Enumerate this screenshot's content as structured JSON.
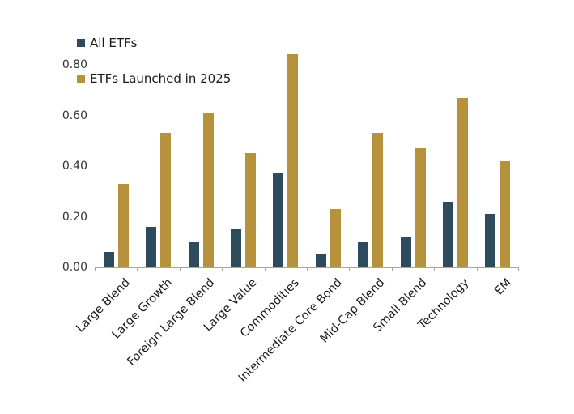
{
  "chart_data": {
    "type": "bar",
    "title": "",
    "xlabel": "",
    "ylabel": "",
    "categories": [
      "Large Blend",
      "Large Growth",
      "Foreign Large Blend",
      "Large Value",
      "Commodities",
      "Intermediate Core Bond",
      "Mid-Cap Blend",
      "Small Blend",
      "Technology",
      "EM"
    ],
    "series": [
      {
        "name": "All ETFs",
        "color": "#2d4b5c",
        "values": [
          0.06,
          0.16,
          0.1,
          0.15,
          0.37,
          0.05,
          0.1,
          0.12,
          0.26,
          0.21
        ]
      },
      {
        "name": "ETFs Launched in 2025",
        "color": "#b6923c",
        "values": [
          0.33,
          0.53,
          0.61,
          0.45,
          0.84,
          0.23,
          0.53,
          0.47,
          0.67,
          0.42
        ]
      }
    ],
    "ylim": [
      0,
      0.96
    ],
    "yticks": [
      0.0,
      0.2,
      0.4,
      0.6,
      0.8
    ],
    "ytick_labels": [
      "0.00",
      "0.20",
      "0.40",
      "0.60",
      "0.80"
    ],
    "grid": false,
    "legend_position": "top-left",
    "axis_color": "#a6a6a6"
  }
}
